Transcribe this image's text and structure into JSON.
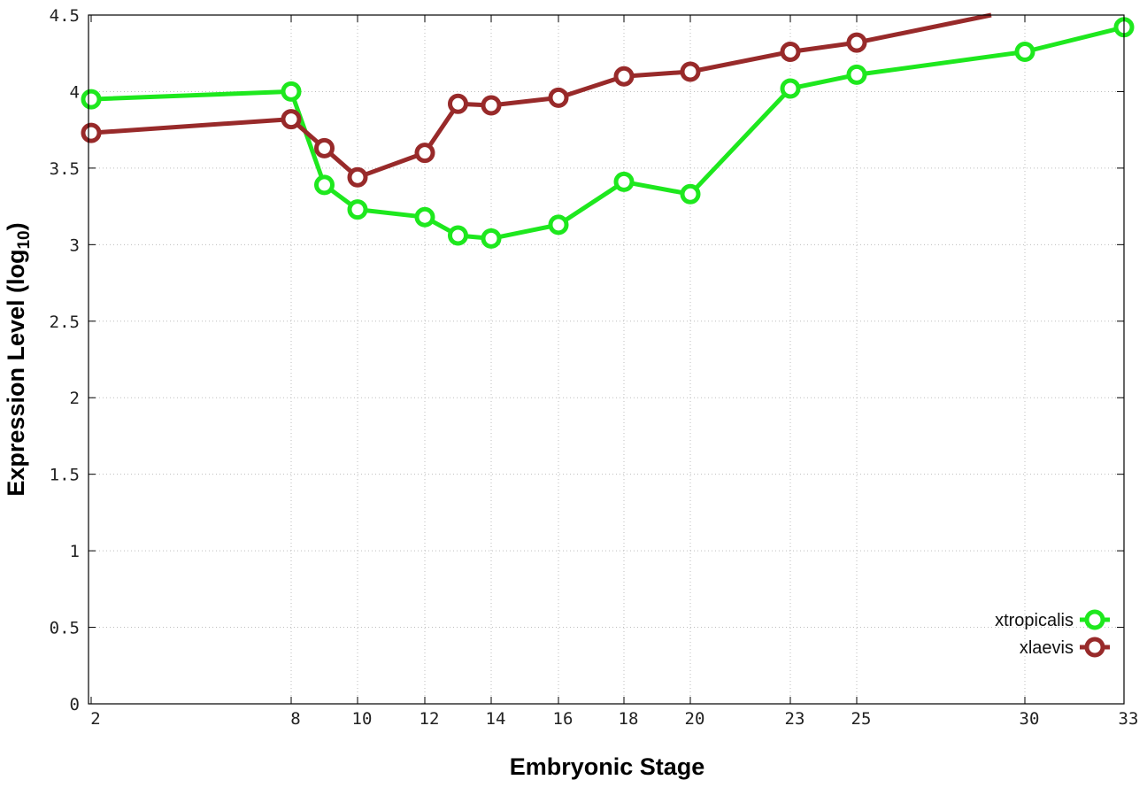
{
  "chart_data": {
    "type": "line",
    "title": "",
    "xlabel": "Embryonic Stage",
    "ylabel_main": "Expression Level (log",
    "ylabel_sub": "10",
    "ylabel_close": ")",
    "x_ticks": [
      2,
      8,
      10,
      12,
      14,
      16,
      18,
      20,
      23,
      25,
      30,
      33
    ],
    "y_ticks": [
      "0",
      "0.5",
      "1",
      "1.5",
      "2",
      "2.5",
      "3",
      "3.5",
      "4",
      "4.5"
    ],
    "ylim": [
      0,
      4.5
    ],
    "grid": true,
    "legend_position": "bottom-right",
    "series": [
      {
        "name": "xtropicalis",
        "color": "#1ee81e",
        "x": [
          2,
          8,
          9,
          10,
          12,
          13,
          14,
          16,
          18,
          20,
          23,
          25,
          30,
          33
        ],
        "y": [
          3.95,
          4.0,
          3.39,
          3.23,
          3.18,
          3.06,
          3.04,
          3.13,
          3.41,
          3.33,
          4.02,
          4.11,
          4.26,
          4.42
        ]
      },
      {
        "name": "xlaevis",
        "color": "#982a2a",
        "x": [
          2,
          8,
          9,
          10,
          12,
          13,
          14,
          16,
          18,
          20,
          23,
          25,
          29
        ],
        "y": [
          3.73,
          3.82,
          3.63,
          3.44,
          3.6,
          3.92,
          3.91,
          3.96,
          4.1,
          4.13,
          4.26,
          4.32,
          4.5
        ],
        "marker_count": 12
      }
    ]
  }
}
